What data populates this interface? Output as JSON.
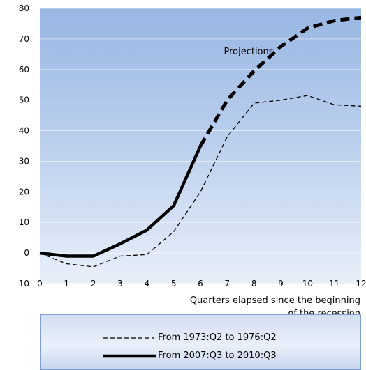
{
  "chart_data": {
    "type": "line",
    "title": "",
    "xlabel": "Quarters elapsed since the beginning of the recession",
    "xlabel_lines": [
      "Quarters elapsed since the beginning",
      "of the recession"
    ],
    "ylabel": "",
    "xlim": [
      0,
      12
    ],
    "ylim": [
      -10,
      80
    ],
    "x_ticks": [
      0,
      1,
      2,
      3,
      4,
      5,
      6,
      7,
      8,
      9,
      10,
      11,
      12
    ],
    "x_tick_labels": [
      "0",
      "1",
      "2",
      "3",
      "4",
      "5",
      "6",
      "7",
      "8",
      "9",
      "10",
      "11",
      "12"
    ],
    "y_ticks": [
      -10,
      0,
      10,
      20,
      30,
      40,
      50,
      60,
      70,
      80
    ],
    "y_tick_labels": [
      "-10",
      "0",
      "10",
      "20",
      "30",
      "40",
      "50",
      "60",
      "70",
      "80"
    ],
    "grid": "horizontal",
    "legend_position": "bottom",
    "annotation": {
      "text": "Projections",
      "x": 7.8,
      "y": 65
    },
    "series": [
      {
        "name": "From 1973:Q2 to 1976:Q2",
        "style": "dashed-thin",
        "color": "#000000",
        "x": [
          0,
          1,
          2,
          3,
          4,
          5,
          6,
          7,
          8,
          9,
          10,
          11,
          12
        ],
        "y": [
          0,
          -3.5,
          -4.5,
          -1,
          -0.5,
          7,
          20,
          38,
          49,
          50,
          51.5,
          48.5,
          48
        ]
      },
      {
        "name": "From 2007:Q3 to 2010:Q3",
        "style": "solid-thick",
        "color": "#000000",
        "x": [
          0,
          1,
          2,
          3,
          4,
          5,
          6
        ],
        "y": [
          0,
          -1,
          -1,
          3,
          7.5,
          15.5,
          35
        ]
      },
      {
        "name": "Projections",
        "style": "dashed-thick",
        "color": "#000000",
        "legend": false,
        "x": [
          6,
          7,
          8,
          9,
          10,
          11,
          12
        ],
        "y": [
          35,
          50,
          59.5,
          67.5,
          73.5,
          76,
          77
        ]
      }
    ]
  }
}
